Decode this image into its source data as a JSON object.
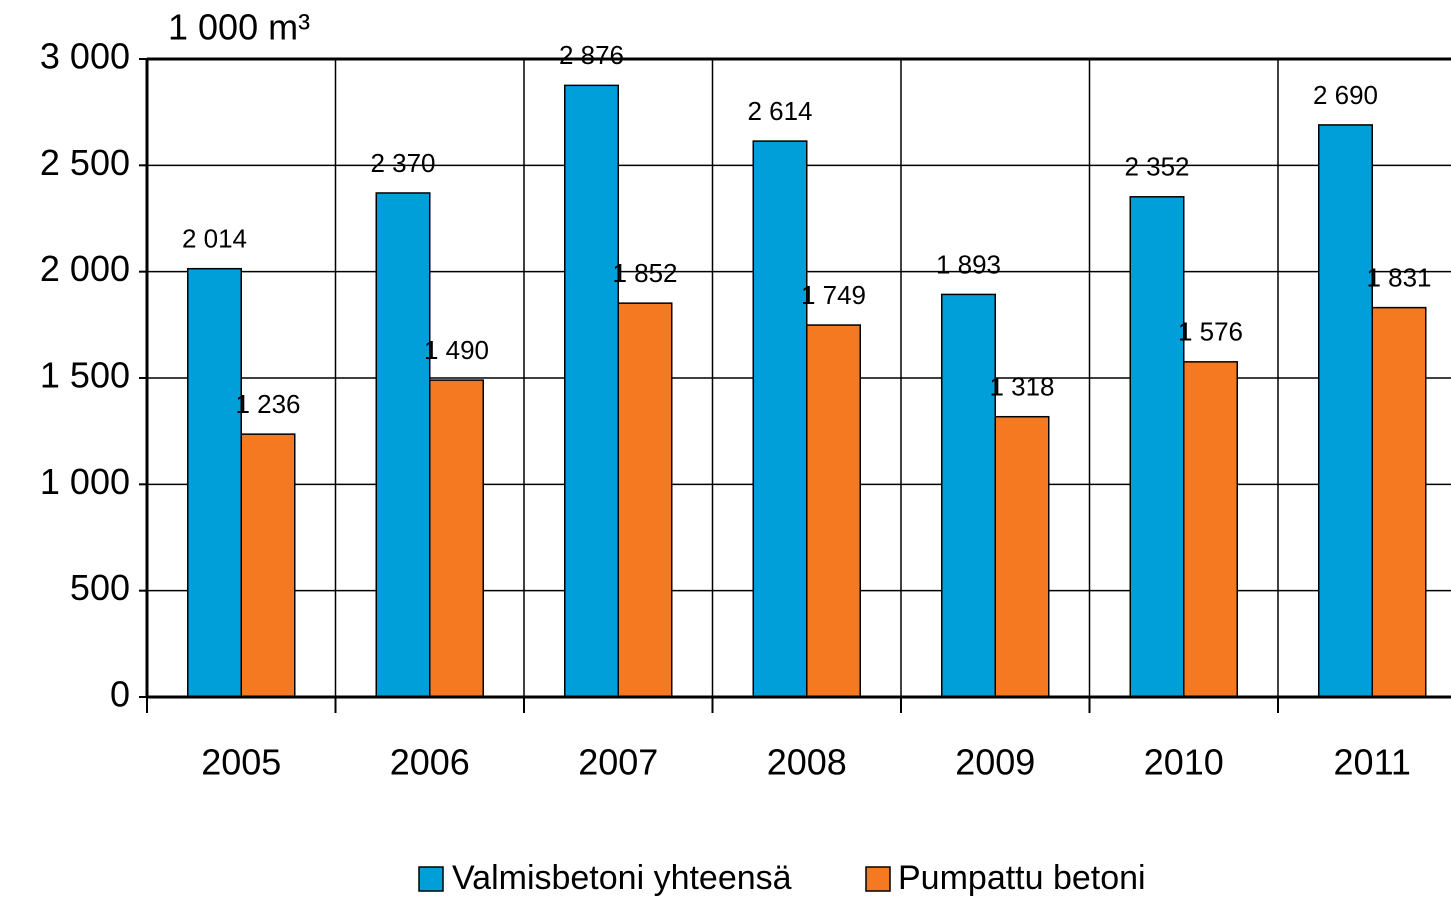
{
  "chart_data": {
    "type": "bar",
    "y_label": "1 000 m³",
    "categories": [
      "2005",
      "2006",
      "2007",
      "2008",
      "2009",
      "2010",
      "2011"
    ],
    "series": [
      {
        "name": "Valmisbetoni yhteensä",
        "color": "#009fda",
        "values": [
          2014,
          2370,
          2876,
          2614,
          1893,
          2352,
          2690
        ],
        "value_labels": [
          "2 014",
          "2 370",
          "2 876",
          "2 614",
          "1 893",
          "2 352",
          "2 690"
        ]
      },
      {
        "name": "Pumpattu betoni",
        "color": "#f47920",
        "values": [
          1236,
          1490,
          1852,
          1749,
          1318,
          1576,
          1831
        ],
        "value_labels": [
          "1 236",
          "1 490",
          "1 852",
          "1 749",
          "1 318",
          "1 576",
          "1 831"
        ]
      }
    ],
    "ylim": [
      0,
      3000
    ],
    "yticks": [
      0,
      500,
      {
        "value": 1000,
        "label": "1 000"
      },
      {
        "value": 1500,
        "label": "1 500"
      },
      {
        "value": 2000,
        "label": "2 000"
      },
      {
        "value": 2500,
        "label": "2 500"
      },
      {
        "value": 3000,
        "label": "3 000"
      }
    ],
    "grid": true,
    "legend": "bottom"
  }
}
